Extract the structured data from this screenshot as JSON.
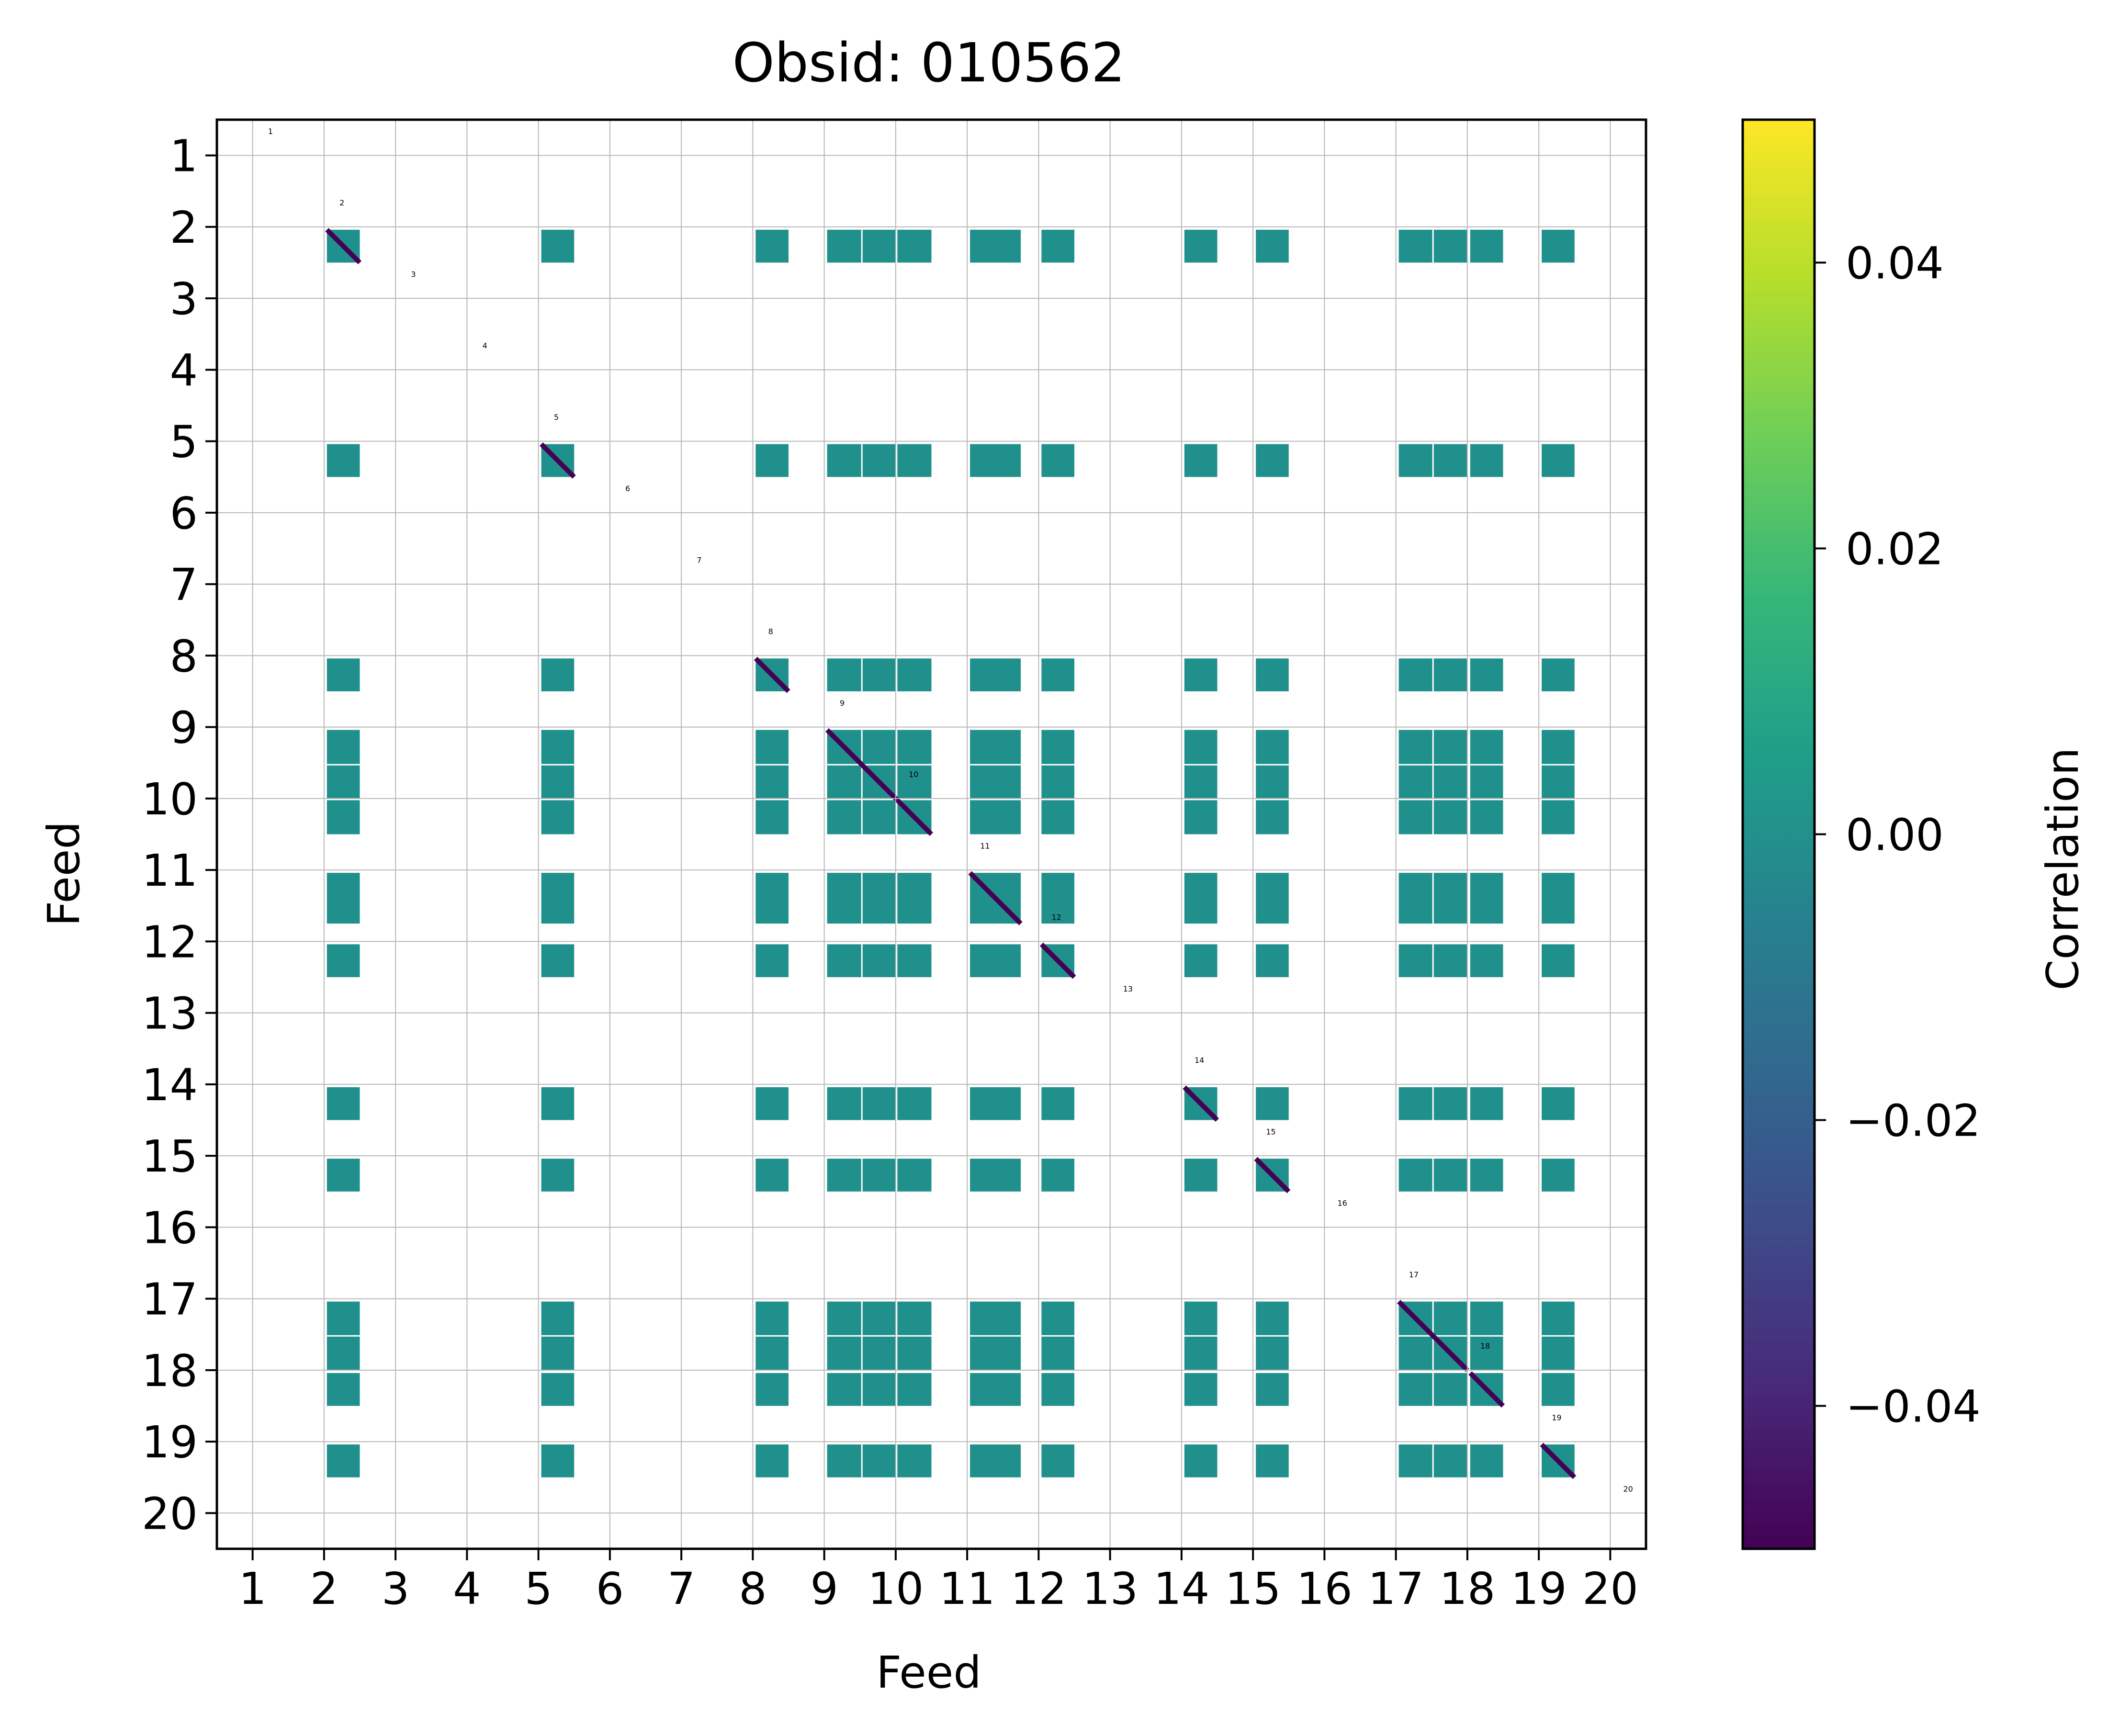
{
  "chart_data": {
    "type": "heatmap",
    "title": "Obsid: 010562",
    "xlabel": "Feed",
    "ylabel": "Feed",
    "x_ticks": [
      "1",
      "2",
      "3",
      "4",
      "5",
      "6",
      "7",
      "8",
      "9",
      "10",
      "11",
      "12",
      "13",
      "14",
      "15",
      "16",
      "17",
      "18",
      "19",
      "20"
    ],
    "y_ticks": [
      "1",
      "2",
      "3",
      "4",
      "5",
      "6",
      "7",
      "8",
      "9",
      "10",
      "11",
      "12",
      "13",
      "14",
      "15",
      "16",
      "17",
      "18",
      "19",
      "20"
    ],
    "feeds": [
      1,
      2,
      3,
      4,
      5,
      6,
      7,
      8,
      9,
      10,
      11,
      12,
      13,
      14,
      15,
      16,
      17,
      18,
      19,
      20
    ],
    "block_heights": [
      0.0,
      0.5,
      0.0,
      0.0,
      0.5,
      0.0,
      0.0,
      0.5,
      1.5,
      0.0,
      0.75,
      0.5,
      0.0,
      0.5,
      0.5,
      0.0,
      1.0,
      0.5,
      0.5,
      0.0
    ],
    "active_feeds": [
      2,
      5,
      8,
      9,
      11,
      12,
      14,
      15,
      17,
      18,
      19
    ],
    "diagonal_labels": [
      "1",
      "2",
      "3",
      "4",
      "5",
      "6",
      "7",
      "8",
      "9",
      "10",
      "11",
      "12",
      "13",
      "14",
      "15",
      "16",
      "17",
      "18",
      "19",
      "20"
    ],
    "off_diagonal_value": 0.0,
    "diagonal_value": -0.05,
    "colorbar": {
      "label": "Correlation",
      "range": [
        -0.05,
        0.05
      ],
      "ticks": [
        -0.04,
        -0.02,
        0.0,
        0.02,
        0.04
      ],
      "tick_labels": [
        "−0.04",
        "−0.02",
        "0.00",
        "0.02",
        "0.04"
      ]
    },
    "colormap": [
      "#440154",
      "#482878",
      "#3e4a89",
      "#31688e",
      "#26828e",
      "#1f9e89",
      "#35b779",
      "#6ece58",
      "#b5de2b",
      "#fde725"
    ],
    "colors": {
      "block": "#20908c",
      "diag": "#440154",
      "grid": "#b8b8b8"
    }
  }
}
